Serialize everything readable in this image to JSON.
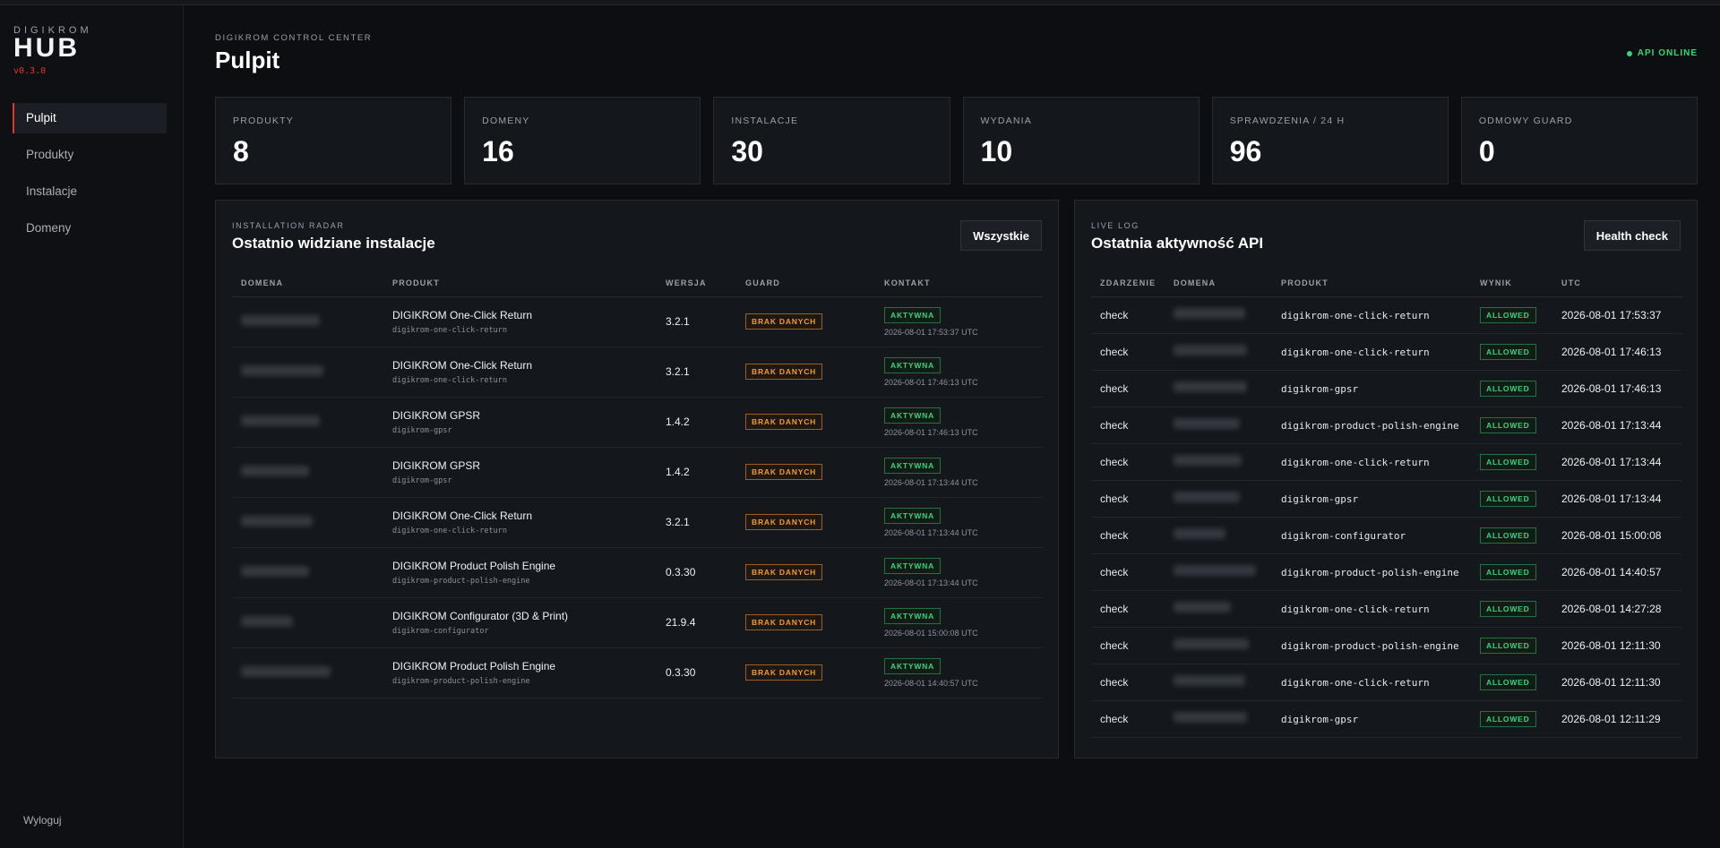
{
  "brand": {
    "top": "DIGIKROM",
    "name": "HUB",
    "version": "v0.3.0"
  },
  "nav": [
    {
      "label": "Pulpit",
      "active": true
    },
    {
      "label": "Produkty",
      "active": false
    },
    {
      "label": "Instalacje",
      "active": false
    },
    {
      "label": "Domeny",
      "active": false
    }
  ],
  "logout_label": "Wyloguj",
  "header": {
    "kicker": "DIGIKROM CONTROL CENTER",
    "title": "Pulpit",
    "api_status": "API ONLINE"
  },
  "stats": [
    {
      "label": "PRODUKTY",
      "value": "8"
    },
    {
      "label": "DOMENY",
      "value": "16"
    },
    {
      "label": "INSTALACJE",
      "value": "30"
    },
    {
      "label": "WYDANIA",
      "value": "10"
    },
    {
      "label": "SPRAWDZENIA / 24 H",
      "value": "96"
    },
    {
      "label": "ODMOWY GUARD",
      "value": "0"
    }
  ],
  "installations": {
    "kicker": "INSTALLATION RADAR",
    "title": "Ostatnio widziane instalacje",
    "button": "Wszystkie",
    "columns": [
      "DOMENA",
      "PRODUKT",
      "WERSJA",
      "GUARD",
      "KONTAKT"
    ],
    "rows": [
      {
        "product": "DIGIKROM One-Click Return",
        "slug": "digikrom-one-click-return",
        "version": "3.2.1",
        "guard": "BRAK DANYCH",
        "status": "AKTYWNA",
        "time": "2026-08-01 17:53:37 UTC"
      },
      {
        "product": "DIGIKROM One-Click Return",
        "slug": "digikrom-one-click-return",
        "version": "3.2.1",
        "guard": "BRAK DANYCH",
        "status": "AKTYWNA",
        "time": "2026-08-01 17:46:13 UTC"
      },
      {
        "product": "DIGIKROM GPSR",
        "slug": "digikrom-gpsr",
        "version": "1.4.2",
        "guard": "BRAK DANYCH",
        "status": "AKTYWNA",
        "time": "2026-08-01 17:46:13 UTC"
      },
      {
        "product": "DIGIKROM GPSR",
        "slug": "digikrom-gpsr",
        "version": "1.4.2",
        "guard": "BRAK DANYCH",
        "status": "AKTYWNA",
        "time": "2026-08-01 17:13:44 UTC"
      },
      {
        "product": "DIGIKROM One-Click Return",
        "slug": "digikrom-one-click-return",
        "version": "3.2.1",
        "guard": "BRAK DANYCH",
        "status": "AKTYWNA",
        "time": "2026-08-01 17:13:44 UTC"
      },
      {
        "product": "DIGIKROM Product Polish Engine",
        "slug": "digikrom-product-polish-engine",
        "version": "0.3.30",
        "guard": "BRAK DANYCH",
        "status": "AKTYWNA",
        "time": "2026-08-01 17:13:44 UTC"
      },
      {
        "product": "DIGIKROM Configurator (3D & Print)",
        "slug": "digikrom-configurator",
        "version": "21.9.4",
        "guard": "BRAK DANYCH",
        "status": "AKTYWNA",
        "time": "2026-08-01 15:00:08 UTC"
      },
      {
        "product": "DIGIKROM Product Polish Engine",
        "slug": "digikrom-product-polish-engine",
        "version": "0.3.30",
        "guard": "BRAK DANYCH",
        "status": "AKTYWNA",
        "time": "2026-08-01 14:40:57 UTC"
      }
    ]
  },
  "api_log": {
    "kicker": "LIVE LOG",
    "title": "Ostatnia aktywność API",
    "button": "Health check",
    "columns": [
      "ZDARZENIE",
      "DOMENA",
      "PRODUKT",
      "WYNIK",
      "UTC"
    ],
    "rows": [
      {
        "event": "check",
        "product": "digikrom-one-click-return",
        "result": "ALLOWED",
        "utc": "2026-08-01 17:53:37"
      },
      {
        "event": "check",
        "product": "digikrom-one-click-return",
        "result": "ALLOWED",
        "utc": "2026-08-01 17:46:13"
      },
      {
        "event": "check",
        "product": "digikrom-gpsr",
        "result": "ALLOWED",
        "utc": "2026-08-01 17:46:13"
      },
      {
        "event": "check",
        "product": "digikrom-product-polish-engine",
        "result": "ALLOWED",
        "utc": "2026-08-01 17:13:44"
      },
      {
        "event": "check",
        "product": "digikrom-one-click-return",
        "result": "ALLOWED",
        "utc": "2026-08-01 17:13:44"
      },
      {
        "event": "check",
        "product": "digikrom-gpsr",
        "result": "ALLOWED",
        "utc": "2026-08-01 17:13:44"
      },
      {
        "event": "check",
        "product": "digikrom-configurator",
        "result": "ALLOWED",
        "utc": "2026-08-01 15:00:08"
      },
      {
        "event": "check",
        "product": "digikrom-product-polish-engine",
        "result": "ALLOWED",
        "utc": "2026-08-01 14:40:57"
      },
      {
        "event": "check",
        "product": "digikrom-one-click-return",
        "result": "ALLOWED",
        "utc": "2026-08-01 14:27:28"
      },
      {
        "event": "check",
        "product": "digikrom-product-polish-engine",
        "result": "ALLOWED",
        "utc": "2026-08-01 12:11:30"
      },
      {
        "event": "check",
        "product": "digikrom-one-click-return",
        "result": "ALLOWED",
        "utc": "2026-08-01 12:11:30"
      },
      {
        "event": "check",
        "product": "digikrom-gpsr",
        "result": "ALLOWED",
        "utc": "2026-08-01 12:11:29"
      }
    ]
  }
}
